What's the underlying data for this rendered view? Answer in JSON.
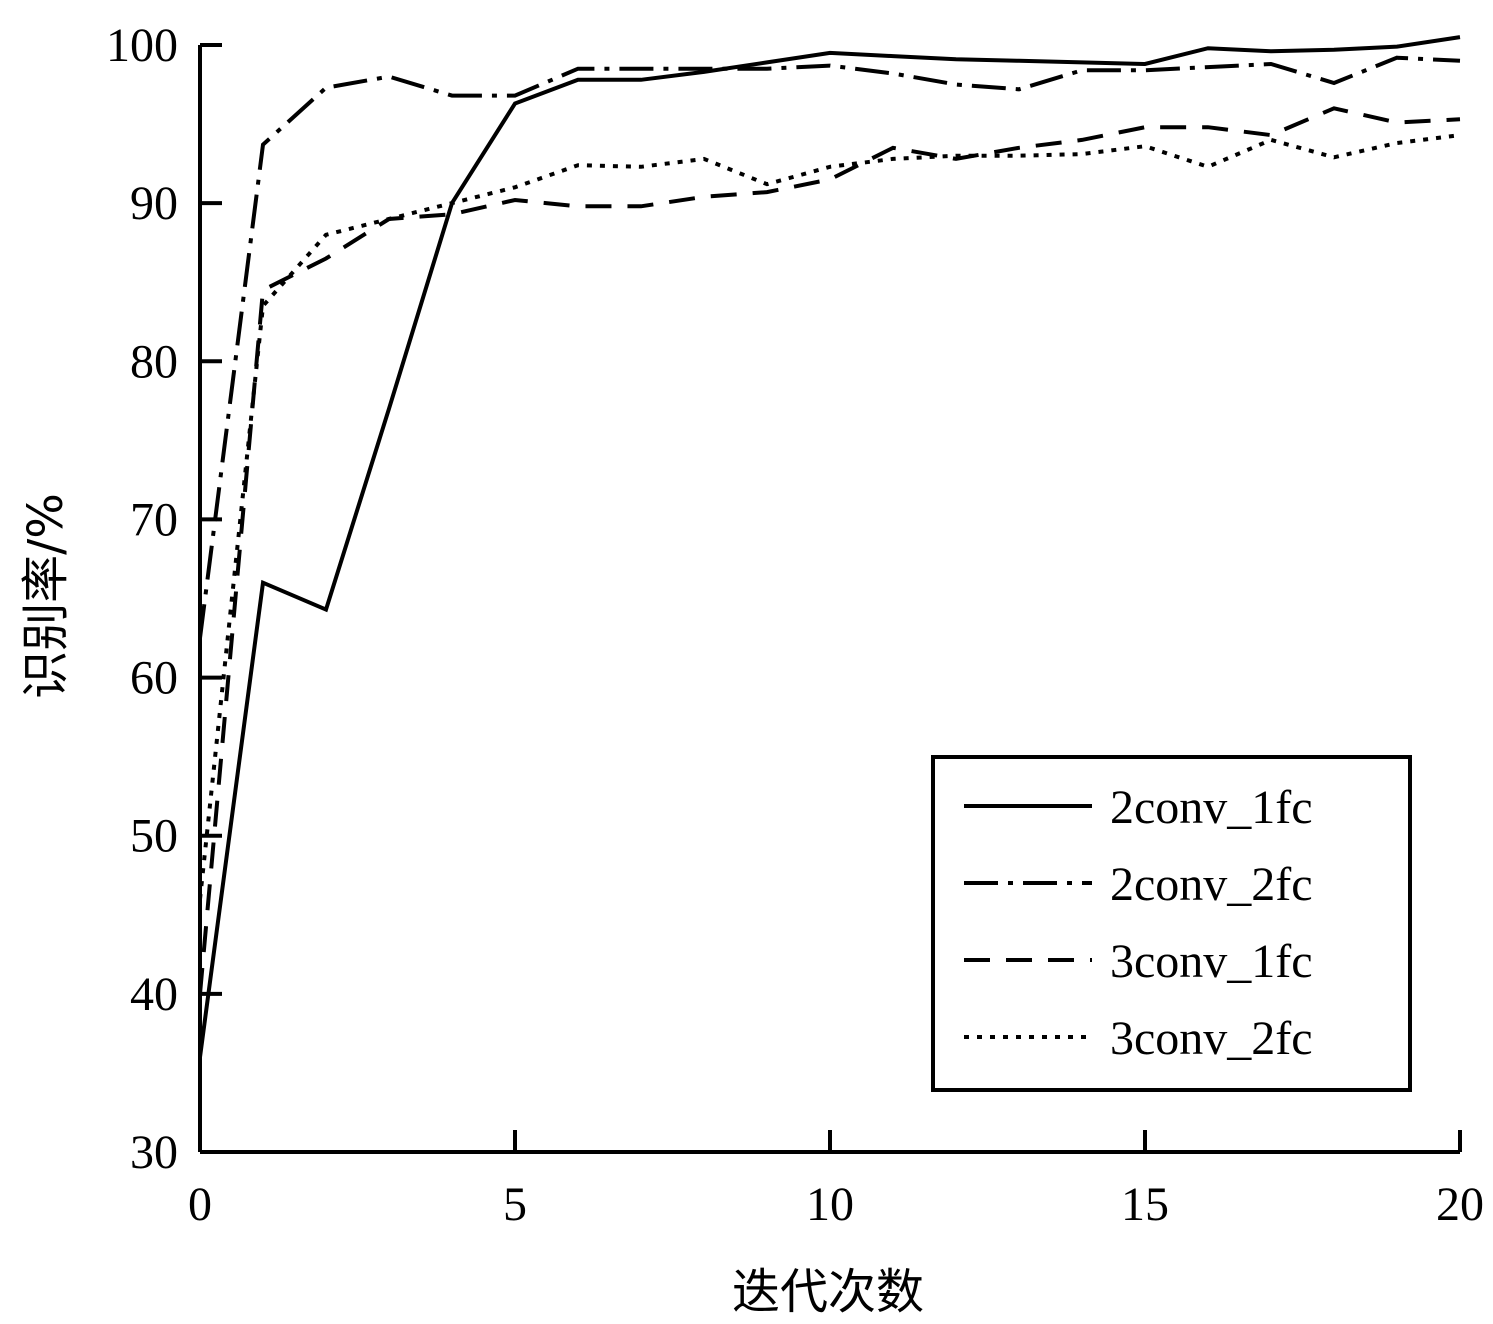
{
  "chart_data": {
    "type": "line",
    "xlabel": "迭代次数",
    "ylabel": "识别率/%",
    "xlim": [
      0,
      20
    ],
    "ylim": [
      30,
      100
    ],
    "xticks": [
      0,
      5,
      10,
      15,
      20
    ],
    "yticks": [
      30,
      40,
      50,
      60,
      70,
      80,
      90,
      100
    ],
    "grid": false,
    "legend_position": "bottom-right",
    "series": [
      {
        "name": "2conv_1fc",
        "style": "solid",
        "x": [
          0,
          1,
          2,
          3,
          4,
          5,
          6,
          7,
          8,
          9,
          10,
          11,
          12,
          13,
          14,
          15,
          16,
          17,
          18,
          19,
          20
        ],
        "y": [
          36,
          66,
          64.3,
          77,
          90,
          96.3,
          97.8,
          97.8,
          98.3,
          98.9,
          99.5,
          99.3,
          99.1,
          99.0,
          98.9,
          98.8,
          99.8,
          99.6,
          99.7,
          99.9,
          100.5
        ]
      },
      {
        "name": "2conv_2fc",
        "style": "dashdot",
        "x": [
          0,
          1,
          2,
          3,
          4,
          5,
          6,
          7,
          8,
          9,
          10,
          11,
          12,
          13,
          14,
          15,
          16,
          17,
          18,
          19,
          20
        ],
        "y": [
          62.5,
          93.7,
          97.3,
          98.0,
          96.8,
          96.8,
          98.5,
          98.5,
          98.5,
          98.5,
          98.7,
          98.2,
          97.5,
          97.2,
          98.4,
          98.4,
          98.6,
          98.8,
          97.6,
          99.2,
          99.0
        ]
      },
      {
        "name": "3conv_1fc",
        "style": "dashed",
        "x": [
          0,
          1,
          2,
          3,
          4,
          5,
          6,
          7,
          8,
          9,
          10,
          11,
          12,
          13,
          14,
          15,
          16,
          17,
          18,
          19,
          20
        ],
        "y": [
          40,
          84.5,
          86.5,
          89.0,
          89.3,
          90.2,
          89.8,
          89.8,
          90.4,
          90.7,
          91.5,
          93.5,
          92.8,
          93.5,
          94.0,
          94.8,
          94.8,
          94.3,
          96.0,
          95.1,
          95.3
        ]
      },
      {
        "name": "3conv_2fc",
        "style": "dotted",
        "x": [
          0,
          1,
          2,
          3,
          4,
          5,
          6,
          7,
          8,
          9,
          10,
          11,
          12,
          13,
          14,
          15,
          16,
          17,
          18,
          19,
          20
        ],
        "y": [
          46,
          83.5,
          88.0,
          89.0,
          90.0,
          91.0,
          92.4,
          92.3,
          92.8,
          91.2,
          92.3,
          92.8,
          93.0,
          93.0,
          93.1,
          93.6,
          92.3,
          94.0,
          92.9,
          93.8,
          94.3
        ]
      }
    ]
  }
}
